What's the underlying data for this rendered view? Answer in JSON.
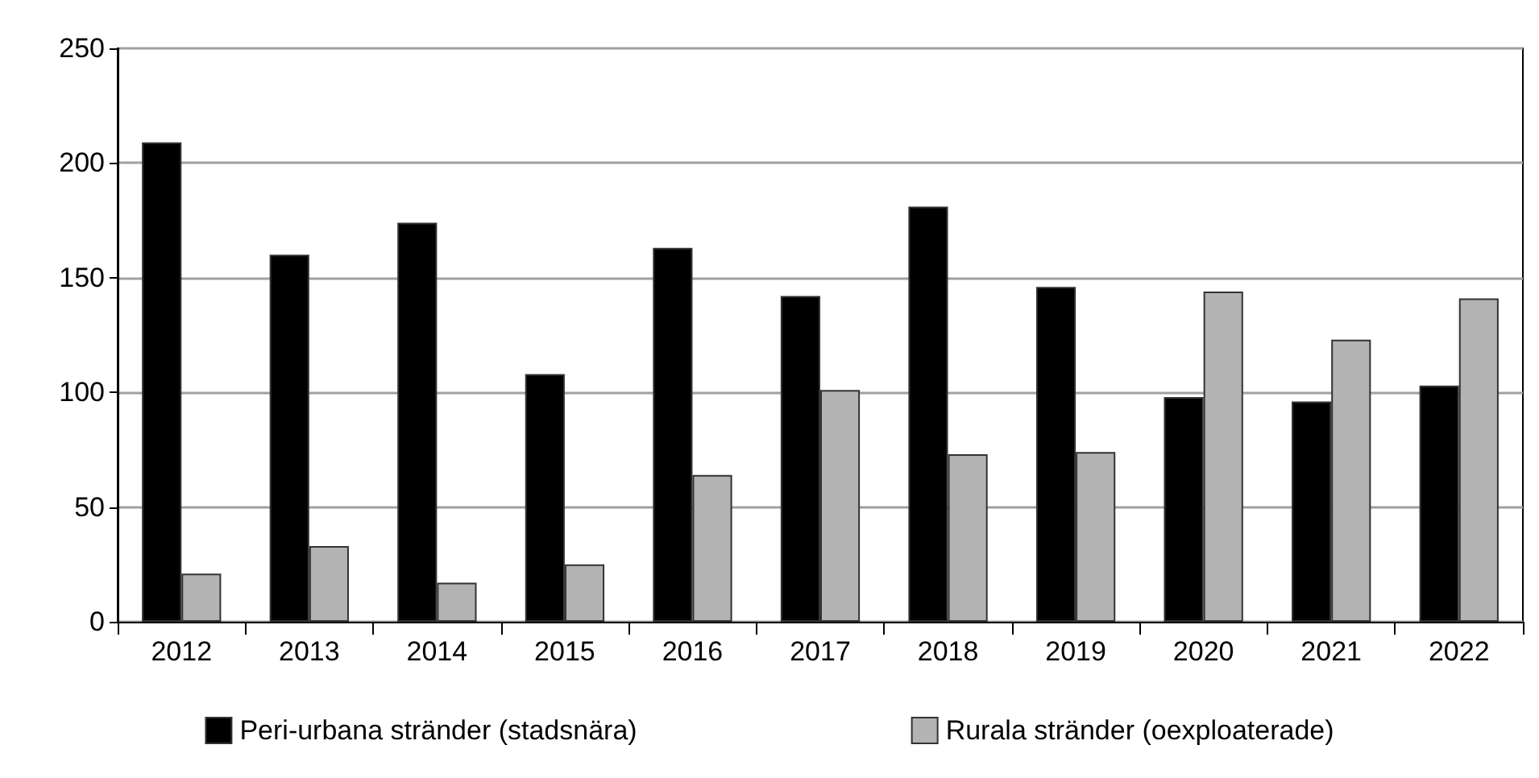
{
  "chart_data": {
    "type": "bar",
    "categories": [
      "2012",
      "2013",
      "2014",
      "2015",
      "2016",
      "2017",
      "2018",
      "2019",
      "2020",
      "2021",
      "2022"
    ],
    "series": [
      {
        "name": "Peri-urbana stränder (stadsnära)",
        "color": "#000000",
        "values": [
          209,
          160,
          174,
          108,
          163,
          142,
          181,
          146,
          98,
          96,
          103
        ]
      },
      {
        "name": "Rurala stränder (oexploaterade)",
        "color": "#b3b3b3",
        "values": [
          21,
          33,
          17,
          25,
          64,
          101,
          73,
          74,
          144,
          123,
          141
        ]
      }
    ],
    "ylim": [
      0,
      250
    ],
    "yticks": [
      0,
      50,
      100,
      150,
      200,
      250
    ],
    "grid": "y",
    "legend": "bottom"
  }
}
